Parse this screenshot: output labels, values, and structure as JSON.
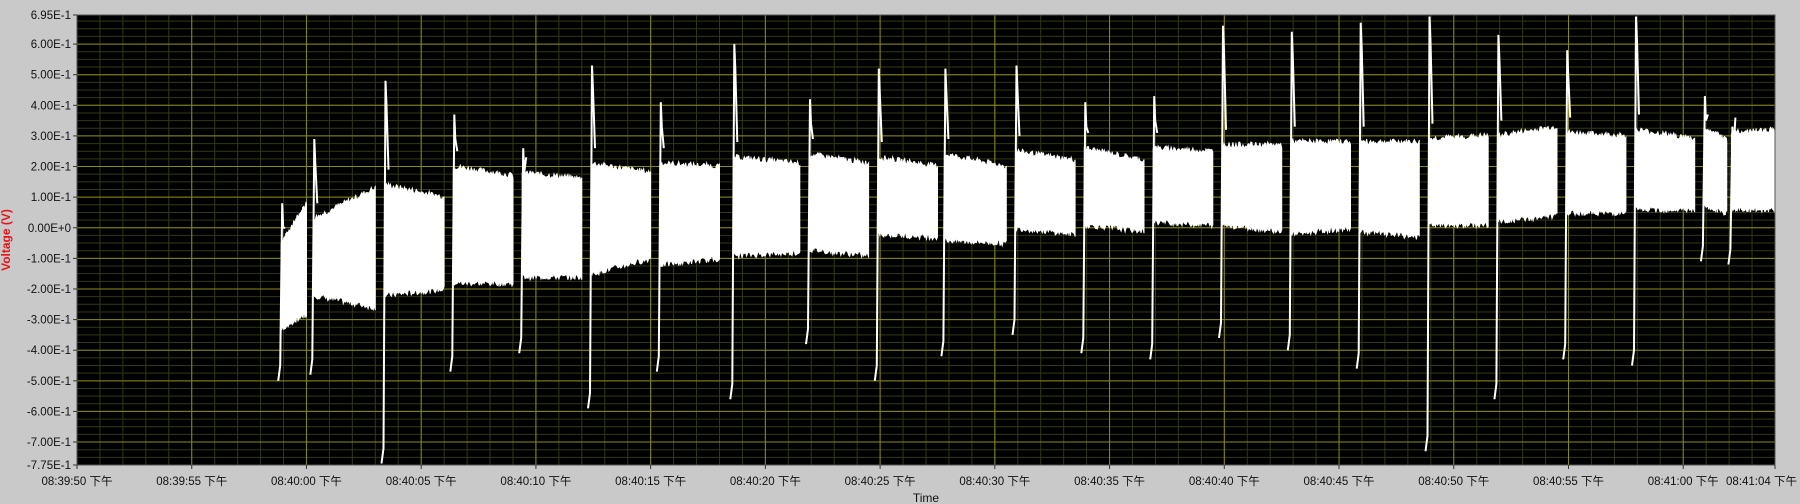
{
  "chart_data": {
    "type": "line",
    "title": "",
    "xlabel": "Time",
    "ylabel": "Voltage (V)",
    "ylim": [
      -0.775,
      0.695
    ],
    "xlim_seconds": [
      0,
      74
    ],
    "y_ticks": [
      {
        "value": 0.695,
        "label": "6.95E-1"
      },
      {
        "value": 0.6,
        "label": "6.00E-1"
      },
      {
        "value": 0.5,
        "label": "5.00E-1"
      },
      {
        "value": 0.4,
        "label": "4.00E-1"
      },
      {
        "value": 0.3,
        "label": "3.00E-1"
      },
      {
        "value": 0.2,
        "label": "2.00E-1"
      },
      {
        "value": 0.1,
        "label": "1.00E-1"
      },
      {
        "value": 0.0,
        "label": "0.00E+0"
      },
      {
        "value": -0.1,
        "label": "-1.00E-1"
      },
      {
        "value": -0.2,
        "label": "-2.00E-1"
      },
      {
        "value": -0.3,
        "label": "-3.00E-1"
      },
      {
        "value": -0.4,
        "label": "-4.00E-1"
      },
      {
        "value": -0.5,
        "label": "-5.00E-1"
      },
      {
        "value": -0.6,
        "label": "-6.00E-1"
      },
      {
        "value": -0.7,
        "label": "-7.00E-1"
      },
      {
        "value": -0.775,
        "label": "-7.75E-1"
      }
    ],
    "x_ticks": [
      {
        "t": 0,
        "label": "08:39:50 下午"
      },
      {
        "t": 5,
        "label": "08:39:55 下午"
      },
      {
        "t": 10,
        "label": "08:40:00 下午"
      },
      {
        "t": 15,
        "label": "08:40:05 下午"
      },
      {
        "t": 20,
        "label": "08:40:10 下午"
      },
      {
        "t": 25,
        "label": "08:40:15 下午"
      },
      {
        "t": 30,
        "label": "08:40:20 下午"
      },
      {
        "t": 35,
        "label": "08:40:25 下午"
      },
      {
        "t": 40,
        "label": "08:40:30 下午"
      },
      {
        "t": 45,
        "label": "08:40:35 下午"
      },
      {
        "t": 50,
        "label": "08:40:40 下午"
      },
      {
        "t": 55,
        "label": "08:40:45 下午"
      },
      {
        "t": 60,
        "label": "08:40:50 下午"
      },
      {
        "t": 65,
        "label": "08:40:55 下午"
      },
      {
        "t": 70,
        "label": "08:41:00 下午"
      },
      {
        "t": 74,
        "label": "08:41:04 下午"
      }
    ],
    "grid": true,
    "colors": {
      "plot_background": "#000000",
      "major_grid": "#8a8a17",
      "minor_grid": "#2e3a12",
      "trace": "#ffffff",
      "frame": "#c9c9c9",
      "ylabel": "#e8141b"
    },
    "segments": [
      {
        "t0": 8.9,
        "t1": 10.0,
        "top_start": -0.05,
        "top_end": 0.08,
        "bot_start": -0.33,
        "bot_end": -0.28,
        "spike_hi": 0.08,
        "spike_lo": -0.5
      },
      {
        "t0": 10.3,
        "t1": 13.0,
        "top_start": 0.03,
        "top_end": 0.13,
        "bot_start": -0.22,
        "bot_end": -0.26,
        "spike_hi": 0.29,
        "spike_lo": -0.48
      },
      {
        "t0": 13.4,
        "t1": 16.0,
        "top_start": 0.14,
        "top_end": 0.1,
        "bot_start": -0.22,
        "bot_end": -0.2,
        "spike_hi": 0.48,
        "spike_lo": -0.77
      },
      {
        "t0": 16.4,
        "t1": 19.0,
        "top_start": 0.2,
        "top_end": 0.17,
        "bot_start": -0.18,
        "bot_end": -0.18,
        "spike_hi": 0.37,
        "spike_lo": -0.47
      },
      {
        "t0": 19.4,
        "t1": 22.0,
        "top_start": 0.18,
        "top_end": 0.16,
        "bot_start": -0.16,
        "bot_end": -0.16,
        "spike_hi": 0.26,
        "spike_lo": -0.41
      },
      {
        "t0": 22.4,
        "t1": 25.0,
        "top_start": 0.21,
        "top_end": 0.18,
        "bot_start": -0.15,
        "bot_end": -0.1,
        "spike_hi": 0.53,
        "spike_lo": -0.59
      },
      {
        "t0": 25.4,
        "t1": 28.0,
        "top_start": 0.21,
        "top_end": 0.2,
        "bot_start": -0.12,
        "bot_end": -0.1,
        "spike_hi": 0.41,
        "spike_lo": -0.47
      },
      {
        "t0": 28.6,
        "t1": 31.5,
        "top_start": 0.23,
        "top_end": 0.21,
        "bot_start": -0.09,
        "bot_end": -0.08,
        "spike_hi": 0.6,
        "spike_lo": -0.56
      },
      {
        "t0": 31.9,
        "t1": 34.5,
        "top_start": 0.24,
        "top_end": 0.21,
        "bot_start": -0.07,
        "bot_end": -0.09,
        "spike_hi": 0.42,
        "spike_lo": -0.38
      },
      {
        "t0": 34.9,
        "t1": 37.5,
        "top_start": 0.23,
        "top_end": 0.2,
        "bot_start": -0.02,
        "bot_end": -0.03,
        "spike_hi": 0.52,
        "spike_lo": -0.5
      },
      {
        "t0": 37.8,
        "t1": 40.5,
        "top_start": 0.24,
        "top_end": 0.2,
        "bot_start": -0.04,
        "bot_end": -0.05,
        "spike_hi": 0.52,
        "spike_lo": -0.42
      },
      {
        "t0": 40.9,
        "t1": 43.5,
        "top_start": 0.25,
        "top_end": 0.22,
        "bot_start": 0.0,
        "bot_end": -0.02,
        "spike_hi": 0.53,
        "spike_lo": -0.35
      },
      {
        "t0": 43.9,
        "t1": 46.5,
        "top_start": 0.26,
        "top_end": 0.22,
        "bot_start": 0.01,
        "bot_end": -0.01,
        "spike_hi": 0.41,
        "spike_lo": -0.41
      },
      {
        "t0": 46.9,
        "t1": 49.5,
        "top_start": 0.26,
        "top_end": 0.25,
        "bot_start": 0.02,
        "bot_end": 0.01,
        "spike_hi": 0.43,
        "spike_lo": -0.43
      },
      {
        "t0": 49.9,
        "t1": 52.5,
        "top_start": 0.27,
        "top_end": 0.27,
        "bot_start": 0.01,
        "bot_end": -0.01,
        "spike_hi": 0.66,
        "spike_lo": -0.36
      },
      {
        "t0": 52.9,
        "t1": 55.5,
        "top_start": 0.28,
        "top_end": 0.28,
        "bot_start": -0.02,
        "bot_end": 0.0,
        "spike_hi": 0.64,
        "spike_lo": -0.4
      },
      {
        "t0": 55.9,
        "t1": 58.5,
        "top_start": 0.28,
        "top_end": 0.28,
        "bot_start": -0.01,
        "bot_end": -0.03,
        "spike_hi": 0.67,
        "spike_lo": -0.46
      },
      {
        "t0": 58.9,
        "t1": 61.5,
        "top_start": 0.29,
        "top_end": 0.3,
        "bot_start": 0.01,
        "bot_end": 0.01,
        "spike_hi": 0.69,
        "spike_lo": -0.73
      },
      {
        "t0": 61.9,
        "t1": 64.5,
        "top_start": 0.3,
        "top_end": 0.33,
        "bot_start": 0.02,
        "bot_end": 0.04,
        "spike_hi": 0.63,
        "spike_lo": -0.56
      },
      {
        "t0": 64.9,
        "t1": 67.5,
        "top_start": 0.31,
        "top_end": 0.3,
        "bot_start": 0.05,
        "bot_end": 0.05,
        "spike_hi": 0.58,
        "spike_lo": -0.43
      },
      {
        "t0": 67.9,
        "t1": 70.5,
        "top_start": 0.32,
        "top_end": 0.29,
        "bot_start": 0.06,
        "bot_end": 0.06,
        "spike_hi": 0.69,
        "spike_lo": -0.45
      },
      {
        "t0": 70.9,
        "t1": 71.9,
        "top_start": 0.32,
        "top_end": 0.29,
        "bot_start": 0.07,
        "bot_end": 0.05,
        "spike_hi": 0.43,
        "spike_lo": -0.11
      },
      {
        "t0": 72.1,
        "t1": 74.0,
        "top_start": 0.31,
        "top_end": 0.32,
        "bot_start": 0.06,
        "bot_end": 0.06,
        "spike_hi": 0.33,
        "spike_lo": -0.12
      }
    ]
  }
}
